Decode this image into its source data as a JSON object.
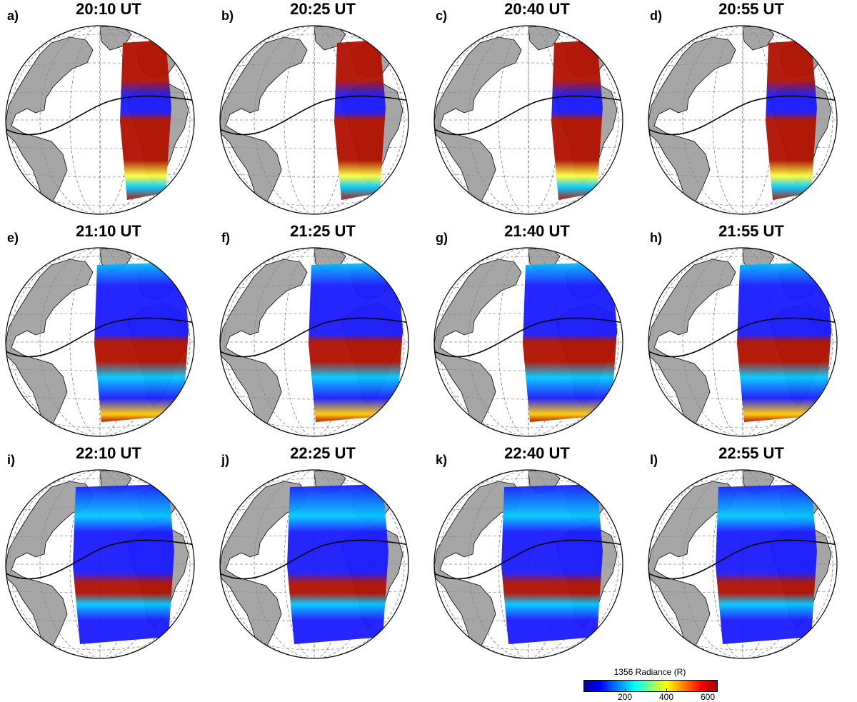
{
  "panels": [
    {
      "letter": "a)",
      "time": "20:10 UT"
    },
    {
      "letter": "b)",
      "time": "20:25 UT"
    },
    {
      "letter": "c)",
      "time": "20:40 UT"
    },
    {
      "letter": "d)",
      "time": "20:55 UT"
    },
    {
      "letter": "e)",
      "time": "21:10 UT"
    },
    {
      "letter": "f)",
      "time": "21:25 UT"
    },
    {
      "letter": "g)",
      "time": "21:40 UT"
    },
    {
      "letter": "h)",
      "time": "21:55 UT"
    },
    {
      "letter": "i)",
      "time": "22:10 UT"
    },
    {
      "letter": "j)",
      "time": "22:25 UT"
    },
    {
      "letter": "k)",
      "time": "22:40 UT"
    },
    {
      "letter": "l)",
      "time": "22:55 UT"
    }
  ],
  "colorbar": {
    "title": "1356 Radiance (R)",
    "ticks": [
      "200",
      "400",
      "600"
    ],
    "colors": [
      "#0000a0",
      "#0000ff",
      "#00ffff",
      "#ffff00",
      "#ff0000",
      "#a00000"
    ]
  },
  "colors": {
    "land": "#a6a6a6",
    "ocean": "#ffffff",
    "grid": "#888888",
    "equator_line": "#000000",
    "low": "#1a1aff",
    "mid": "#00c8ff",
    "high": "#b01000"
  }
}
